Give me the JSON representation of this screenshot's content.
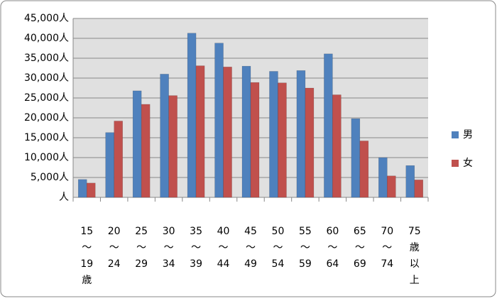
{
  "chart_data": {
    "type": "bar",
    "categories": [
      [
        "15",
        "〜",
        "19",
        "歳"
      ],
      [
        "20",
        "〜",
        "24"
      ],
      [
        "25",
        "〜",
        "29"
      ],
      [
        "30",
        "〜",
        "34"
      ],
      [
        "35",
        "〜",
        "39"
      ],
      [
        "40",
        "〜",
        "44"
      ],
      [
        "45",
        "〜",
        "49"
      ],
      [
        "50",
        "〜",
        "54"
      ],
      [
        "55",
        "〜",
        "59"
      ],
      [
        "60",
        "〜",
        "64"
      ],
      [
        "65",
        "〜",
        "69"
      ],
      [
        "70",
        "〜",
        "74"
      ],
      [
        "75",
        "歳",
        "以",
        "上"
      ]
    ],
    "series": [
      {
        "name": "男",
        "color": "#4f81bd",
        "values": [
          4500,
          16300,
          26800,
          31000,
          41300,
          38800,
          33000,
          31700,
          31900,
          36100,
          19800,
          10000,
          8000
        ]
      },
      {
        "name": "女",
        "color": "#c0504d",
        "values": [
          3600,
          19200,
          23400,
          25600,
          33100,
          32800,
          28900,
          28800,
          27500,
          25800,
          14200,
          5400,
          4400
        ]
      }
    ],
    "ylim": [
      0,
      45000
    ],
    "yticks": [
      {
        "value": 0,
        "label": "人"
      },
      {
        "value": 5000,
        "label": "5,000人"
      },
      {
        "value": 10000,
        "label": "10,000人"
      },
      {
        "value": 15000,
        "label": "15,000人"
      },
      {
        "value": 20000,
        "label": "20,000人"
      },
      {
        "value": 25000,
        "label": "25,000人"
      },
      {
        "value": 30000,
        "label": "30,000人"
      },
      {
        "value": 35000,
        "label": "35,000人"
      },
      {
        "value": 40000,
        "label": "40,000人"
      },
      {
        "value": 45000,
        "label": "45,000人"
      }
    ],
    "grid": true,
    "legend": "right"
  }
}
